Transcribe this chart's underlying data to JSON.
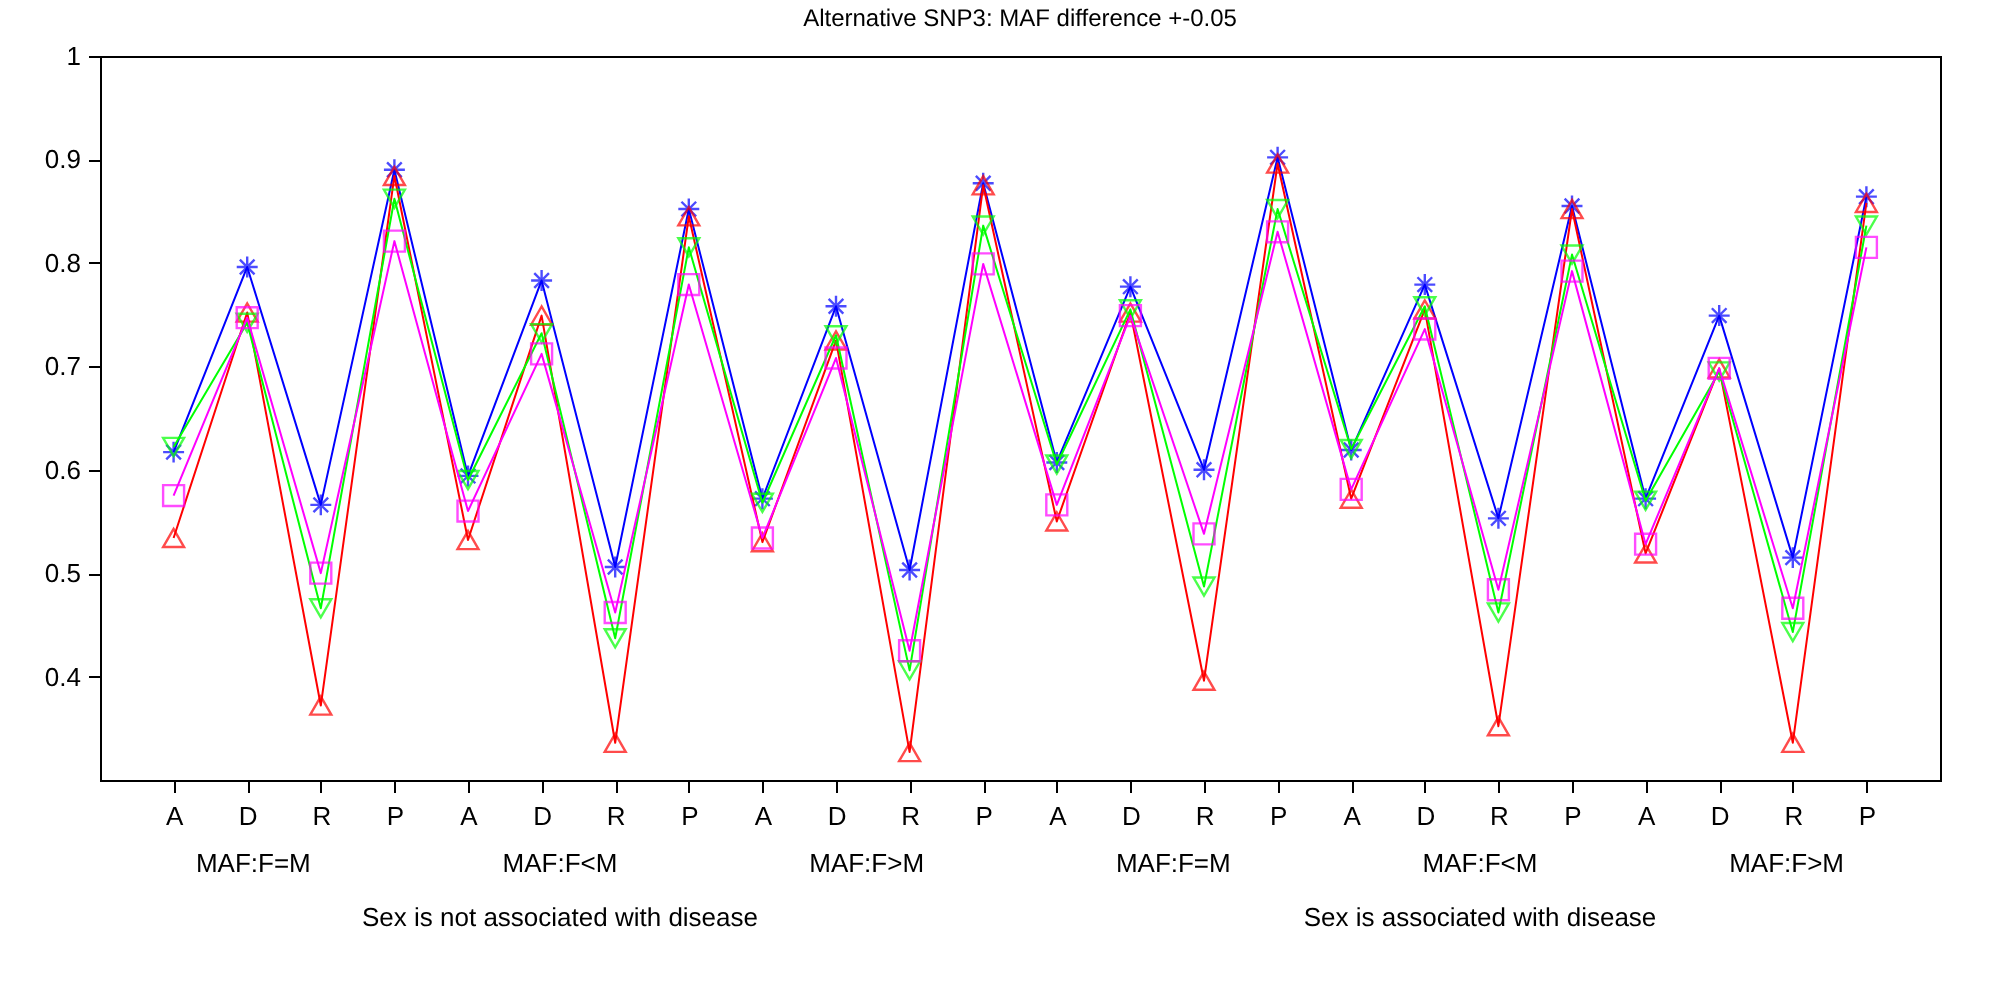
{
  "chart_data": {
    "type": "line",
    "title": "Alternative SNP3: MAF difference +-0.05",
    "categories": [
      "A",
      "D",
      "R",
      "P",
      "A",
      "D",
      "R",
      "P",
      "A",
      "D",
      "R",
      "P",
      "A",
      "D",
      "R",
      "P",
      "A",
      "D",
      "R",
      "P",
      "A",
      "D",
      "R",
      "P"
    ],
    "series": [
      {
        "color": "#0000ff",
        "marker": "cross",
        "values": [
          0.617,
          0.796,
          0.566,
          0.89,
          0.594,
          0.783,
          0.506,
          0.852,
          0.572,
          0.758,
          0.503,
          0.877,
          0.607,
          0.777,
          0.6,
          0.902,
          0.619,
          0.779,
          0.553,
          0.855,
          0.572,
          0.749,
          0.515,
          0.864
        ]
      },
      {
        "color": "#ff0000",
        "marker": "triangle",
        "values": [
          0.534,
          0.752,
          0.372,
          0.884,
          0.532,
          0.749,
          0.336,
          0.845,
          0.53,
          0.725,
          0.327,
          0.875,
          0.55,
          0.752,
          0.396,
          0.896,
          0.572,
          0.755,
          0.352,
          0.852,
          0.519,
          0.698,
          0.336,
          0.858
        ]
      },
      {
        "color": "#00ff00",
        "marker": "triangle-down",
        "values": [
          0.622,
          0.742,
          0.466,
          0.862,
          0.59,
          0.732,
          0.437,
          0.815,
          0.568,
          0.73,
          0.406,
          0.836,
          0.605,
          0.755,
          0.487,
          0.852,
          0.62,
          0.758,
          0.462,
          0.808,
          0.57,
          0.695,
          0.443,
          0.836
        ]
      },
      {
        "color": "#ff00ff",
        "marker": "square",
        "values": [
          0.575,
          0.747,
          0.5,
          0.821,
          0.56,
          0.712,
          0.462,
          0.779,
          0.534,
          0.708,
          0.425,
          0.799,
          0.566,
          0.749,
          0.538,
          0.83,
          0.581,
          0.736,
          0.484,
          0.792,
          0.528,
          0.698,
          0.466,
          0.815
        ]
      }
    ],
    "ylim": [
      0.3,
      1
    ],
    "yticks": [
      0.4,
      0.5,
      0.6,
      0.7,
      0.8,
      0.9,
      1
    ],
    "grid": false,
    "line_style": "solid",
    "annotations": [
      "MAF:F=M",
      "MAF:F<M",
      "MAF:F>M",
      "MAF:F=M",
      "MAF:F<M",
      "MAF:F>M",
      "Sex is not associated with disease",
      "Sex is associated with disease"
    ]
  }
}
